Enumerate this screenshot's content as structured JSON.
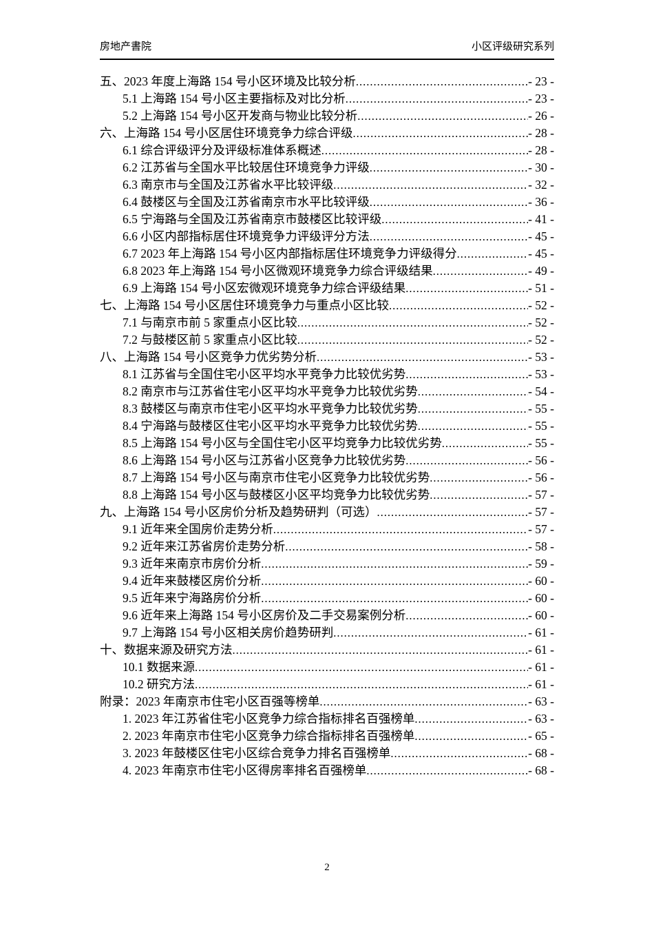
{
  "header": {
    "left": "房地产書院",
    "right": "小区评级研究系列"
  },
  "footer": {
    "page_number": "2"
  },
  "toc": {
    "entries": [
      {
        "level": 1,
        "text": "五、2023 年度上海路 154 号小区环境及比较分析",
        "page": "- 23 -"
      },
      {
        "level": 2,
        "text": "5.1 上海路 154 号小区主要指标及对比分析",
        "page": "- 23 -"
      },
      {
        "level": 2,
        "text": "5.2 上海路 154 号小区开发商与物业比较分析",
        "page": "- 26 -"
      },
      {
        "level": 1,
        "text": "六、上海路 154 号小区居住环境竞争力综合评级",
        "page": "- 28 -"
      },
      {
        "level": 2,
        "text": "6.1 综合评级评分及评级标准体系概述",
        "page": "- 28 -"
      },
      {
        "level": 2,
        "text": "6.2 江苏省与全国水平比较居住环境竞争力评级",
        "page": "- 30 -"
      },
      {
        "level": 2,
        "text": "6.3 南京市与全国及江苏省水平比较评级",
        "page": "- 32 -"
      },
      {
        "level": 2,
        "text": "6.4 鼓楼区与全国及江苏省南京市水平比较评级",
        "page": "- 36 -"
      },
      {
        "level": 2,
        "text": "6.5 宁海路与全国及江苏省南京市鼓楼区比较评级",
        "page": "- 41 -"
      },
      {
        "level": 2,
        "text": "6.6 小区内部指标居住环境竞争力评级评分方法",
        "page": "- 45 -"
      },
      {
        "level": 2,
        "text": "6.7 2023 年上海路 154 号小区内部指标居住环境竞争力评级得分",
        "page": "- 45 -"
      },
      {
        "level": 2,
        "text": "6.8 2023 年上海路 154 号小区微观环境竞争力综合评级结果",
        "page": "- 49 -"
      },
      {
        "level": 2,
        "text": "6.9 上海路 154 号小区宏微观环境竞争力综合评级结果",
        "page": "- 51 -"
      },
      {
        "level": 1,
        "text": "七、上海路 154 号小区居住环境竞争力与重点小区比较",
        "page": "- 52 -"
      },
      {
        "level": 2,
        "text": "7.1 与南京市前 5 家重点小区比较",
        "page": "- 52 -"
      },
      {
        "level": 2,
        "text": "7.2 与鼓楼区前 5 家重点小区比较",
        "page": "- 52 -"
      },
      {
        "level": 1,
        "text": "八、上海路 154 号小区竞争力优劣势分析",
        "page": "- 53 -"
      },
      {
        "level": 2,
        "text": "8.1 江苏省与全国住宅小区平均水平竞争力比较优劣势",
        "page": "- 53 -"
      },
      {
        "level": 2,
        "text": "8.2 南京市与江苏省住宅小区平均水平竞争力比较优劣势",
        "page": "- 54 -"
      },
      {
        "level": 2,
        "text": "8.3 鼓楼区与南京市住宅小区平均水平竞争力比较优劣势",
        "page": "- 55 -"
      },
      {
        "level": 2,
        "text": "8.4 宁海路与鼓楼区住宅小区平均水平竞争力比较优劣势",
        "page": "- 55 -"
      },
      {
        "level": 2,
        "text": "8.5 上海路 154 号小区与全国住宅小区平均竞争力比较优劣势",
        "page": "- 55 -"
      },
      {
        "level": 2,
        "text": "8.6 上海路 154 号小区与江苏省小区竞争力比较优劣势",
        "page": "- 56 -"
      },
      {
        "level": 2,
        "text": "8.7 上海路 154 号小区与南京市住宅小区竞争力比较优劣势",
        "page": "- 56 -"
      },
      {
        "level": 2,
        "text": "8.8 上海路 154 号小区与鼓楼区小区平均竞争力比较优劣势",
        "page": "- 57 -"
      },
      {
        "level": 1,
        "text": "九、上海路 154 号小区房价分析及趋势研判（可选）",
        "page": "- 57 -"
      },
      {
        "level": 2,
        "text": "9.1 近年来全国房价走势分析",
        "page": "- 57 -"
      },
      {
        "level": 2,
        "text": "9.2 近年来江苏省房价走势分析",
        "page": "- 58 -"
      },
      {
        "level": 2,
        "text": "9.3 近年来南京市房价分析",
        "page": "- 59 -"
      },
      {
        "level": 2,
        "text": "9.4 近年来鼓楼区房价分析",
        "page": "- 60 -"
      },
      {
        "level": 2,
        "text": "9.5 近年来宁海路房价分析",
        "page": "- 60 -"
      },
      {
        "level": 2,
        "text": "9.6 近年来上海路 154 号小区房价及二手交易案例分析",
        "page": "- 60 -"
      },
      {
        "level": 2,
        "text": "9.7 上海路 154 号小区相关房价趋势研判",
        "page": "- 61 -"
      },
      {
        "level": 1,
        "text": "十、数据来源及研究方法",
        "page": "- 61 -"
      },
      {
        "level": 2,
        "text": "10.1 数据来源",
        "page": "- 61 -"
      },
      {
        "level": 2,
        "text": "10.2 研究方法",
        "page": "- 61 -"
      },
      {
        "level": 1,
        "text": "附录：2023 年南京市住宅小区百强等榜单",
        "page": "- 63 -"
      },
      {
        "level": 2,
        "text": "1. 2023 年江苏省住宅小区竞争力综合指标排名百强榜单",
        "page": "- 63 -"
      },
      {
        "level": 2,
        "text": "2. 2023 年南京市住宅小区竞争力综合指标排名百强榜单",
        "page": "- 65 -"
      },
      {
        "level": 2,
        "text": "3. 2023 年鼓楼区住宅小区综合竞争力排名百强榜单",
        "page": "- 68 -"
      },
      {
        "level": 2,
        "text": "4. 2023 年南京市住宅小区得房率排名百强榜单",
        "page": "- 68 -"
      }
    ]
  }
}
